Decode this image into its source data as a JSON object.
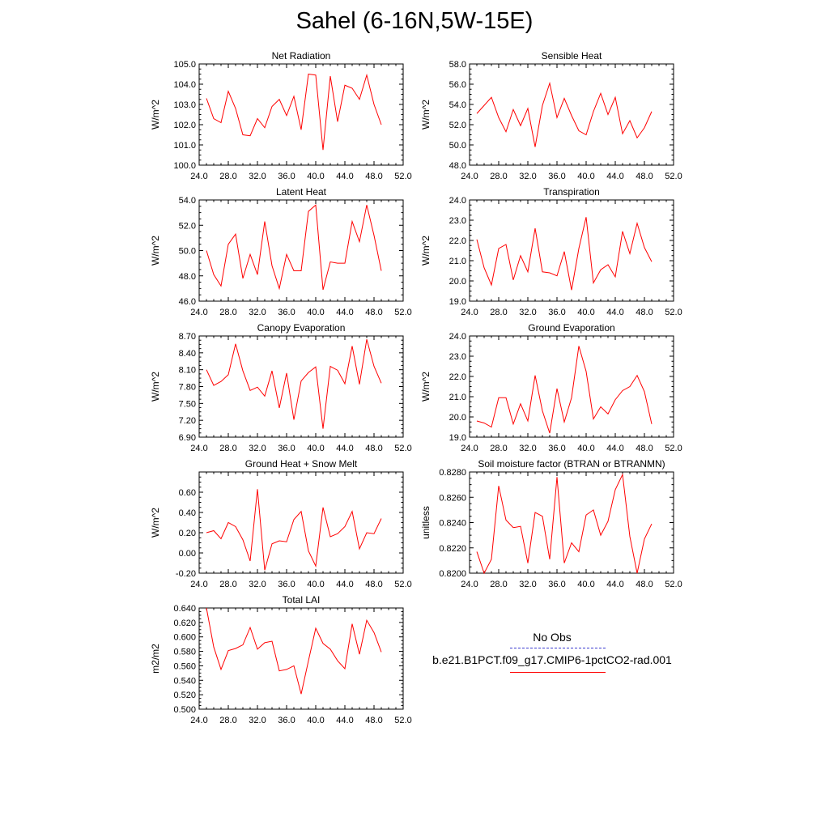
{
  "title": "Sahel (6-16N,5W-15E)",
  "legend": {
    "entries": [
      {
        "label": "No Obs",
        "color": "#3b3bd0",
        "style": "dashed"
      },
      {
        "label": "b.e21.B1PCT.f09_g17.CMIP6-1pctCO2-rad.001",
        "color": "#ff0000",
        "style": "solid"
      }
    ]
  },
  "chart_data": [
    {
      "type": "line",
      "title": "Net Radiation",
      "ylabel": "W/m^2",
      "xlim": [
        24,
        52
      ],
      "xticks": [
        24,
        28,
        32,
        36,
        40,
        44,
        48,
        52
      ],
      "xtick_labels": [
        "24.0",
        "28.0",
        "32.0",
        "36.0",
        "40.0",
        "44.0",
        "48.0",
        "52.0"
      ],
      "ylim": [
        100,
        105
      ],
      "yticks": [
        100,
        101,
        102,
        103,
        104,
        105
      ],
      "ytick_labels": [
        "100.0",
        "101.0",
        "102.0",
        "103.0",
        "104.0",
        "105.0"
      ],
      "series": [
        {
          "name": "b.e21.B1PCT.f09_g17.CMIP6-1pctCO2-rad.001",
          "color": "#ff0000",
          "x": [
            25,
            26,
            27,
            28,
            29,
            30,
            31,
            32,
            33,
            34,
            35,
            36,
            37,
            38,
            39,
            40,
            41,
            42,
            43,
            44,
            45,
            46,
            47,
            48,
            49
          ],
          "y": [
            103.3,
            102.3,
            102.1,
            103.65,
            102.8,
            101.5,
            101.45,
            102.3,
            101.85,
            102.9,
            103.25,
            102.45,
            103.4,
            101.75,
            104.5,
            104.45,
            100.75,
            104.4,
            102.15,
            103.95,
            103.8,
            103.25,
            104.45,
            103.0,
            102.0
          ]
        }
      ]
    },
    {
      "type": "line",
      "title": "Sensible Heat",
      "ylabel": "W/m^2",
      "xlim": [
        24,
        52
      ],
      "xticks": [
        24,
        28,
        32,
        36,
        40,
        44,
        48,
        52
      ],
      "xtick_labels": [
        "24.0",
        "28.0",
        "32.0",
        "36.0",
        "40.0",
        "44.0",
        "48.0",
        "52.0"
      ],
      "ylim": [
        48,
        58
      ],
      "yticks": [
        48,
        50,
        52,
        54,
        56,
        58
      ],
      "ytick_labels": [
        "48.0",
        "50.0",
        "52.0",
        "54.0",
        "56.0",
        "58.0"
      ],
      "series": [
        {
          "name": "b.e21.B1PCT.f09_g17.CMIP6-1pctCO2-rad.001",
          "color": "#ff0000",
          "x": [
            25,
            26,
            27,
            28,
            29,
            30,
            31,
            32,
            33,
            34,
            35,
            36,
            37,
            38,
            39,
            40,
            41,
            42,
            43,
            44,
            45,
            46,
            47,
            48,
            49
          ],
          "y": [
            53.1,
            53.9,
            54.7,
            52.7,
            51.3,
            53.5,
            51.9,
            53.6,
            49.8,
            53.9,
            56.1,
            52.7,
            54.6,
            52.9,
            51.4,
            51.0,
            53.3,
            55.1,
            53.0,
            54.7,
            51.1,
            52.4,
            50.7,
            51.7,
            53.3
          ]
        }
      ]
    },
    {
      "type": "line",
      "title": "Latent Heat",
      "ylabel": "W/m^2",
      "xlim": [
        24,
        52
      ],
      "xticks": [
        24,
        28,
        32,
        36,
        40,
        44,
        48,
        52
      ],
      "xtick_labels": [
        "24.0",
        "28.0",
        "32.0",
        "36.0",
        "40.0",
        "44.0",
        "48.0",
        "52.0"
      ],
      "ylim": [
        46,
        54
      ],
      "yticks": [
        46,
        48,
        50,
        52,
        54
      ],
      "ytick_labels": [
        "46.0",
        "48.0",
        "50.0",
        "52.0",
        "54.0"
      ],
      "series": [
        {
          "name": "b.e21.B1PCT.f09_g17.CMIP6-1pctCO2-rad.001",
          "color": "#ff0000",
          "x": [
            25,
            26,
            27,
            28,
            29,
            30,
            31,
            32,
            33,
            34,
            35,
            36,
            37,
            38,
            39,
            40,
            41,
            42,
            43,
            44,
            45,
            46,
            47,
            48,
            49
          ],
          "y": [
            50.0,
            48.1,
            47.2,
            50.5,
            51.3,
            47.8,
            49.7,
            48.1,
            52.3,
            48.8,
            47.0,
            49.7,
            48.4,
            48.4,
            53.1,
            53.6,
            46.9,
            49.1,
            49.0,
            49.0,
            52.3,
            50.7,
            53.6,
            51.2,
            48.4
          ]
        }
      ]
    },
    {
      "type": "line",
      "title": "Transpiration",
      "ylabel": "W/m^2",
      "xlim": [
        24,
        52
      ],
      "xticks": [
        24,
        28,
        32,
        36,
        40,
        44,
        48,
        52
      ],
      "xtick_labels": [
        "24.0",
        "28.0",
        "32.0",
        "36.0",
        "40.0",
        "44.0",
        "48.0",
        "52.0"
      ],
      "ylim": [
        19,
        24
      ],
      "yticks": [
        19,
        20,
        21,
        22,
        23,
        24
      ],
      "ytick_labels": [
        "19.0",
        "20.0",
        "21.0",
        "22.0",
        "23.0",
        "24.0"
      ],
      "series": [
        {
          "name": "b.e21.B1PCT.f09_g17.CMIP6-1pctCO2-rad.001",
          "color": "#ff0000",
          "x": [
            25,
            26,
            27,
            28,
            29,
            30,
            31,
            32,
            33,
            34,
            35,
            36,
            37,
            38,
            39,
            40,
            41,
            42,
            43,
            44,
            45,
            46,
            47,
            48,
            49
          ],
          "y": [
            22.05,
            20.65,
            19.8,
            21.6,
            21.8,
            20.05,
            21.25,
            20.45,
            22.6,
            20.45,
            20.4,
            20.25,
            21.45,
            19.55,
            21.6,
            23.15,
            19.9,
            20.55,
            20.8,
            20.2,
            22.45,
            21.35,
            22.85,
            21.65,
            20.95
          ]
        }
      ]
    },
    {
      "type": "line",
      "title": "Canopy Evaporation",
      "ylabel": "W/m^2",
      "xlim": [
        24,
        52
      ],
      "xticks": [
        24,
        28,
        32,
        36,
        40,
        44,
        48,
        52
      ],
      "xtick_labels": [
        "24.0",
        "28.0",
        "32.0",
        "36.0",
        "40.0",
        "44.0",
        "48.0",
        "52.0"
      ],
      "ylim": [
        6.9,
        8.7
      ],
      "yticks": [
        6.9,
        7.2,
        7.5,
        7.8,
        8.1,
        8.4,
        8.7
      ],
      "ytick_labels": [
        "6.90",
        "7.20",
        "7.50",
        "7.80",
        "8.10",
        "8.40",
        "8.70"
      ],
      "series": [
        {
          "name": "b.e21.B1PCT.f09_g17.CMIP6-1pctCO2-rad.001",
          "color": "#ff0000",
          "x": [
            25,
            26,
            27,
            28,
            29,
            30,
            31,
            32,
            33,
            34,
            35,
            36,
            37,
            38,
            39,
            40,
            41,
            42,
            43,
            44,
            45,
            46,
            47,
            48,
            49
          ],
          "y": [
            8.1,
            7.82,
            7.89,
            8.01,
            8.56,
            8.08,
            7.73,
            7.79,
            7.63,
            8.08,
            7.42,
            8.04,
            7.21,
            7.9,
            8.05,
            8.15,
            7.05,
            8.16,
            8.09,
            7.85,
            8.52,
            7.84,
            8.64,
            8.16,
            7.86
          ]
        }
      ]
    },
    {
      "type": "line",
      "title": "Ground Evaporation",
      "ylabel": "W/m^2",
      "xlim": [
        24,
        52
      ],
      "xticks": [
        24,
        28,
        32,
        36,
        40,
        44,
        48,
        52
      ],
      "xtick_labels": [
        "24.0",
        "28.0",
        "32.0",
        "36.0",
        "40.0",
        "44.0",
        "48.0",
        "52.0"
      ],
      "ylim": [
        19,
        24
      ],
      "yticks": [
        19,
        20,
        21,
        22,
        23,
        24
      ],
      "ytick_labels": [
        "19.0",
        "20.0",
        "21.0",
        "22.0",
        "23.0",
        "24.0"
      ],
      "series": [
        {
          "name": "b.e21.B1PCT.f09_g17.CMIP6-1pctCO2-rad.001",
          "color": "#ff0000",
          "x": [
            25,
            26,
            27,
            28,
            29,
            30,
            31,
            32,
            33,
            34,
            35,
            36,
            37,
            38,
            39,
            40,
            41,
            42,
            43,
            44,
            45,
            46,
            47,
            48,
            49
          ],
          "y": [
            19.8,
            19.7,
            19.5,
            20.95,
            20.95,
            19.65,
            20.65,
            19.8,
            22.05,
            20.3,
            19.2,
            21.4,
            19.75,
            20.95,
            23.5,
            22.25,
            19.9,
            20.5,
            20.15,
            20.85,
            21.3,
            21.5,
            22.05,
            21.25,
            19.65
          ]
        }
      ]
    },
    {
      "type": "line",
      "title": "Ground Heat + Snow Melt",
      "ylabel": "W/m^2",
      "xlim": [
        24,
        52
      ],
      "xticks": [
        24,
        28,
        32,
        36,
        40,
        44,
        48,
        52
      ],
      "xtick_labels": [
        "24.0",
        "28.0",
        "32.0",
        "36.0",
        "40.0",
        "44.0",
        "48.0",
        "52.0"
      ],
      "ylim": [
        -0.2,
        0.8
      ],
      "yticks": [
        -0.2,
        0.0,
        0.2,
        0.4,
        0.6
      ],
      "ytick_labels": [
        "-0.20",
        "0.00",
        "0.20",
        "0.40",
        "0.60"
      ],
      "series": [
        {
          "name": "b.e21.B1PCT.f09_g17.CMIP6-1pctCO2-rad.001",
          "color": "#ff0000",
          "x": [
            25,
            26,
            27,
            28,
            29,
            30,
            31,
            32,
            33,
            34,
            35,
            36,
            37,
            38,
            39,
            40,
            41,
            42,
            43,
            44,
            45,
            46,
            47,
            48,
            49
          ],
          "y": [
            0.2,
            0.22,
            0.14,
            0.3,
            0.26,
            0.13,
            -0.08,
            0.63,
            -0.17,
            0.09,
            0.12,
            0.11,
            0.33,
            0.41,
            0.02,
            -0.13,
            0.45,
            0.16,
            0.19,
            0.26,
            0.41,
            0.04,
            0.2,
            0.19,
            0.34
          ]
        }
      ]
    },
    {
      "type": "line",
      "title": "Soil moisture factor (BTRAN or BTRANMN)",
      "ylabel": "unitless",
      "xlim": [
        24,
        52
      ],
      "xticks": [
        24,
        28,
        32,
        36,
        40,
        44,
        48,
        52
      ],
      "xtick_labels": [
        "24.0",
        "28.0",
        "32.0",
        "36.0",
        "40.0",
        "44.0",
        "48.0",
        "52.0"
      ],
      "ylim": [
        0.82,
        0.828
      ],
      "yticks": [
        0.82,
        0.822,
        0.824,
        0.826,
        0.828
      ],
      "ytick_labels": [
        "0.8200",
        "0.8220",
        "0.8240",
        "0.8260",
        "0.8280"
      ],
      "series": [
        {
          "name": "b.e21.B1PCT.f09_g17.CMIP6-1pctCO2-rad.001",
          "color": "#ff0000",
          "x": [
            25,
            26,
            27,
            28,
            29,
            30,
            31,
            32,
            33,
            34,
            35,
            36,
            37,
            38,
            39,
            40,
            41,
            42,
            43,
            44,
            45,
            46,
            47,
            48,
            49
          ],
          "y": [
            0.8217,
            0.82,
            0.8211,
            0.8269,
            0.8242,
            0.8236,
            0.8237,
            0.8208,
            0.8248,
            0.8245,
            0.8211,
            0.8276,
            0.8208,
            0.8224,
            0.8217,
            0.8246,
            0.825,
            0.823,
            0.8241,
            0.8266,
            0.8278,
            0.8229,
            0.82,
            0.8227,
            0.8239
          ]
        }
      ]
    },
    {
      "type": "line",
      "title": "Total LAI",
      "ylabel": "m2/m2",
      "xlim": [
        24,
        52
      ],
      "xticks": [
        24,
        28,
        32,
        36,
        40,
        44,
        48,
        52
      ],
      "xtick_labels": [
        "24.0",
        "28.0",
        "32.0",
        "36.0",
        "40.0",
        "44.0",
        "48.0",
        "52.0"
      ],
      "ylim": [
        0.5,
        0.64
      ],
      "yticks": [
        0.5,
        0.52,
        0.54,
        0.56,
        0.58,
        0.6,
        0.62,
        0.64
      ],
      "ytick_labels": [
        "0.500",
        "0.520",
        "0.540",
        "0.560",
        "0.580",
        "0.600",
        "0.620",
        "0.640"
      ],
      "series": [
        {
          "name": "b.e21.B1PCT.f09_g17.CMIP6-1pctCO2-rad.001",
          "color": "#ff0000",
          "x": [
            25,
            26,
            27,
            28,
            29,
            30,
            31,
            32,
            33,
            34,
            35,
            36,
            37,
            38,
            39,
            40,
            41,
            42,
            43,
            44,
            45,
            46,
            47,
            48,
            49
          ],
          "y": [
            0.64,
            0.586,
            0.555,
            0.581,
            0.584,
            0.589,
            0.613,
            0.583,
            0.592,
            0.594,
            0.553,
            0.555,
            0.56,
            0.521,
            0.567,
            0.612,
            0.591,
            0.583,
            0.567,
            0.556,
            0.618,
            0.576,
            0.623,
            0.606,
            0.579
          ]
        }
      ]
    }
  ]
}
